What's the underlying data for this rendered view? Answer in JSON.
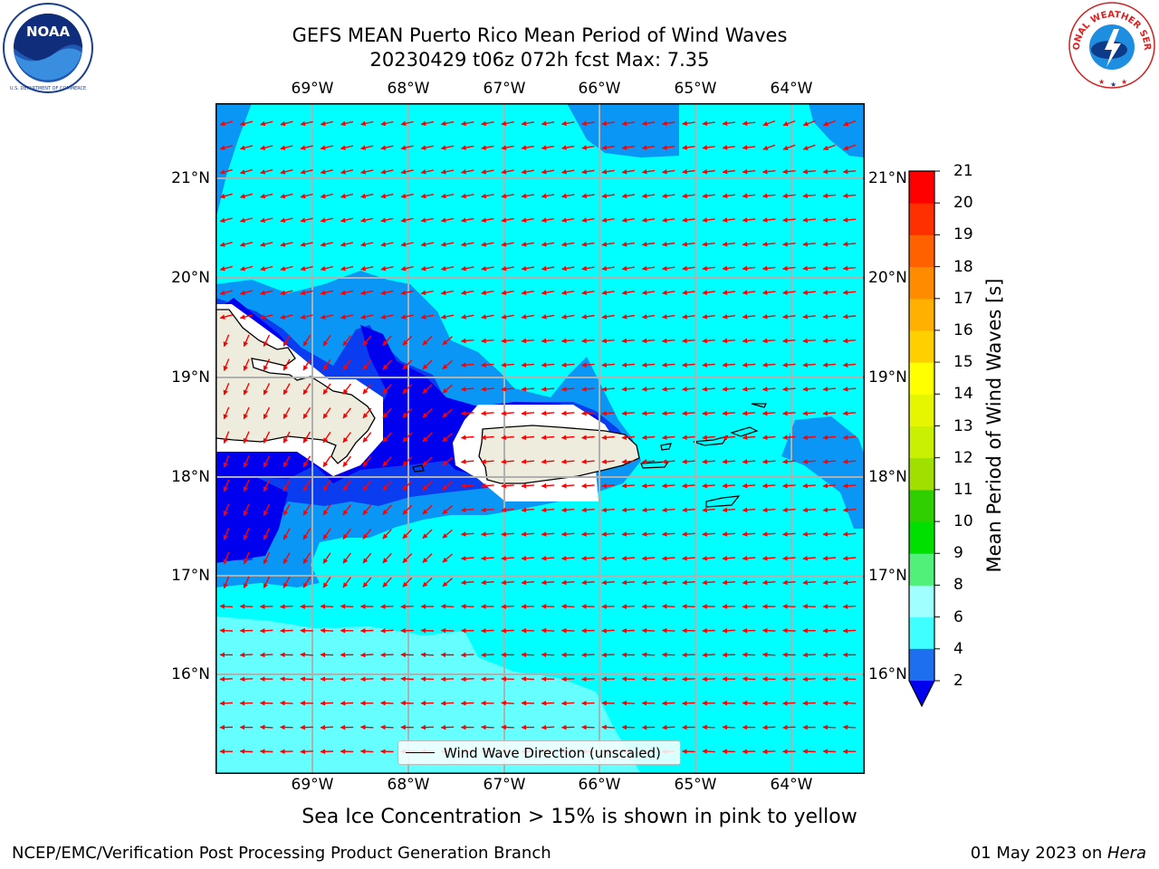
{
  "title": {
    "line1": "GEFS MEAN Puerto Rico Mean Period of Wind Waves",
    "line2": "20230429 t06z 072h fcst   Max: 7.35"
  },
  "logos": {
    "left": "NOAA",
    "left_ring_text": "NATIONAL OCEANIC AND ATMOSPHERIC ADMINISTRATION · U.S. DEPARTMENT OF COMMERCE",
    "right_ring_text": "NATIONAL WEATHER SERVICE"
  },
  "map": {
    "lon_labels": [
      "69°W",
      "68°W",
      "67°W",
      "66°W",
      "65°W",
      "64°W"
    ],
    "lat_labels": [
      "21°N",
      "20°N",
      "19°N",
      "18°N",
      "17°N",
      "16°N"
    ],
    "legend": "Wind Wave Direction (unscaled)",
    "colors": {
      "land": "#eeecdc",
      "level_2_4": "#0a3cf0",
      "level_4_6": "#0a96f5",
      "level_6_8": "#00ffff",
      "level_8_9": "#66ffff",
      "below_2": "#0000ee",
      "arrow": "#ff0000"
    }
  },
  "colorbar": {
    "title": "Mean Period of Wind Waves [s]",
    "labels": [
      "2",
      "4",
      "6",
      "8",
      "9",
      "10",
      "11",
      "12",
      "13",
      "14",
      "15",
      "16",
      "17",
      "18",
      "19",
      "20",
      "21"
    ],
    "colors": [
      "#1e6ff0",
      "#00ffff",
      "#40ffff",
      "#a0ffff",
      "#50f07a",
      "#00e000",
      "#30d000",
      "#a0e000",
      "#c8f000",
      "#e6f500",
      "#ffff00",
      "#ffd000",
      "#ffb000",
      "#ff8c00",
      "#ff6000",
      "#ff3000",
      "#ff0000"
    ],
    "extend_color": "#0000ee"
  },
  "subtitle": "Sea Ice Concentration > 15% is shown in pink to yellow",
  "footer": {
    "left": "NCEP/EMC/Verification Post Processing Product Generation Branch",
    "right_date": "01 May 2023 on ",
    "right_host": "Hera"
  }
}
